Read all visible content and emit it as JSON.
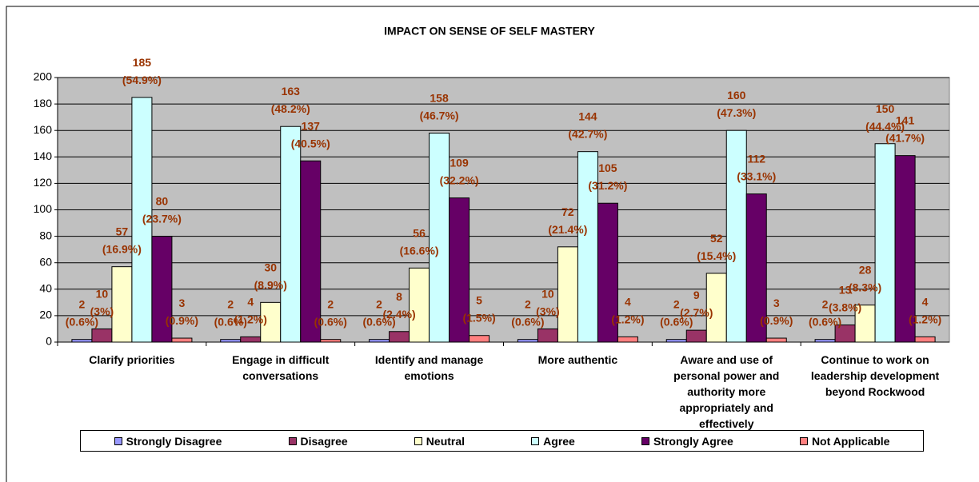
{
  "chart_data": {
    "type": "bar",
    "title": "IMPACT ON SENSE OF SELF MASTERY",
    "categories": [
      "Clarify priorities",
      "Engage in difficult conversations",
      "Identify and manage emotions",
      "More authentic",
      "Aware and use of personal power and authority more appropriately and effectively",
      "Continue to work on leadership development beyond Rockwood"
    ],
    "series": [
      {
        "name": "Strongly Disagree",
        "color": "#9999ff",
        "values": [
          2,
          2,
          2,
          2,
          2,
          2
        ],
        "value_labels": [
          "2\n(0.6%)",
          "2\n(0.6%)",
          "2\n(0.6%)",
          "2\n(0.6%)",
          "2\n(0.6%)",
          "2\n(0.6%)"
        ]
      },
      {
        "name": "Disagree",
        "color": "#993366",
        "values": [
          10,
          4,
          8,
          10,
          9,
          13
        ],
        "value_labels": [
          "10\n(3%)",
          "4\n(1.2%)",
          "8\n(2.4%)",
          "10\n(3%)",
          "9\n(2.7%)",
          "13\n(3.8%)"
        ]
      },
      {
        "name": "Neutral",
        "color": "#ffffcc",
        "values": [
          57,
          30,
          56,
          72,
          52,
          28
        ],
        "value_labels": [
          "57\n(16.9%)",
          "30\n(8.9%)",
          "56\n(16.6%)",
          "72\n(21.4%)",
          "52\n(15.4%)",
          "28\n(8.3%)"
        ]
      },
      {
        "name": "Agree",
        "color": "#ccffff",
        "values": [
          185,
          163,
          158,
          144,
          160,
          150
        ],
        "value_labels": [
          "185\n(54.9%)",
          "163\n(48.2%)",
          "158\n(46.7%)",
          "144\n(42.7%)",
          "160\n(47.3%)",
          "150\n(44.4%)"
        ]
      },
      {
        "name": "Strongly Agree",
        "color": "#660066",
        "values": [
          80,
          137,
          109,
          105,
          112,
          141
        ],
        "value_labels": [
          "80\n(23.7%)",
          "137\n(40.5%)",
          "109\n(32.2%)",
          "105\n(31.2%)",
          "112\n(33.1%)",
          "141\n(41.7%)"
        ]
      },
      {
        "name": "Not Applicable",
        "color": "#ff8080",
        "values": [
          3,
          2,
          5,
          4,
          3,
          4
        ],
        "value_labels": [
          "3\n(0.9%)",
          "2\n(0.6%)",
          "5\n(1.5%)",
          "4\n(1.2%)",
          "3\n(0.9%)",
          "4\n(1.2%)"
        ]
      }
    ],
    "ylim": [
      0,
      200
    ],
    "yticks": [
      0,
      20,
      40,
      60,
      80,
      100,
      120,
      140,
      160,
      180,
      200
    ],
    "grid": true,
    "legend": "bottom",
    "plot_background": "#c0c0c0",
    "label_color": "#993300"
  }
}
